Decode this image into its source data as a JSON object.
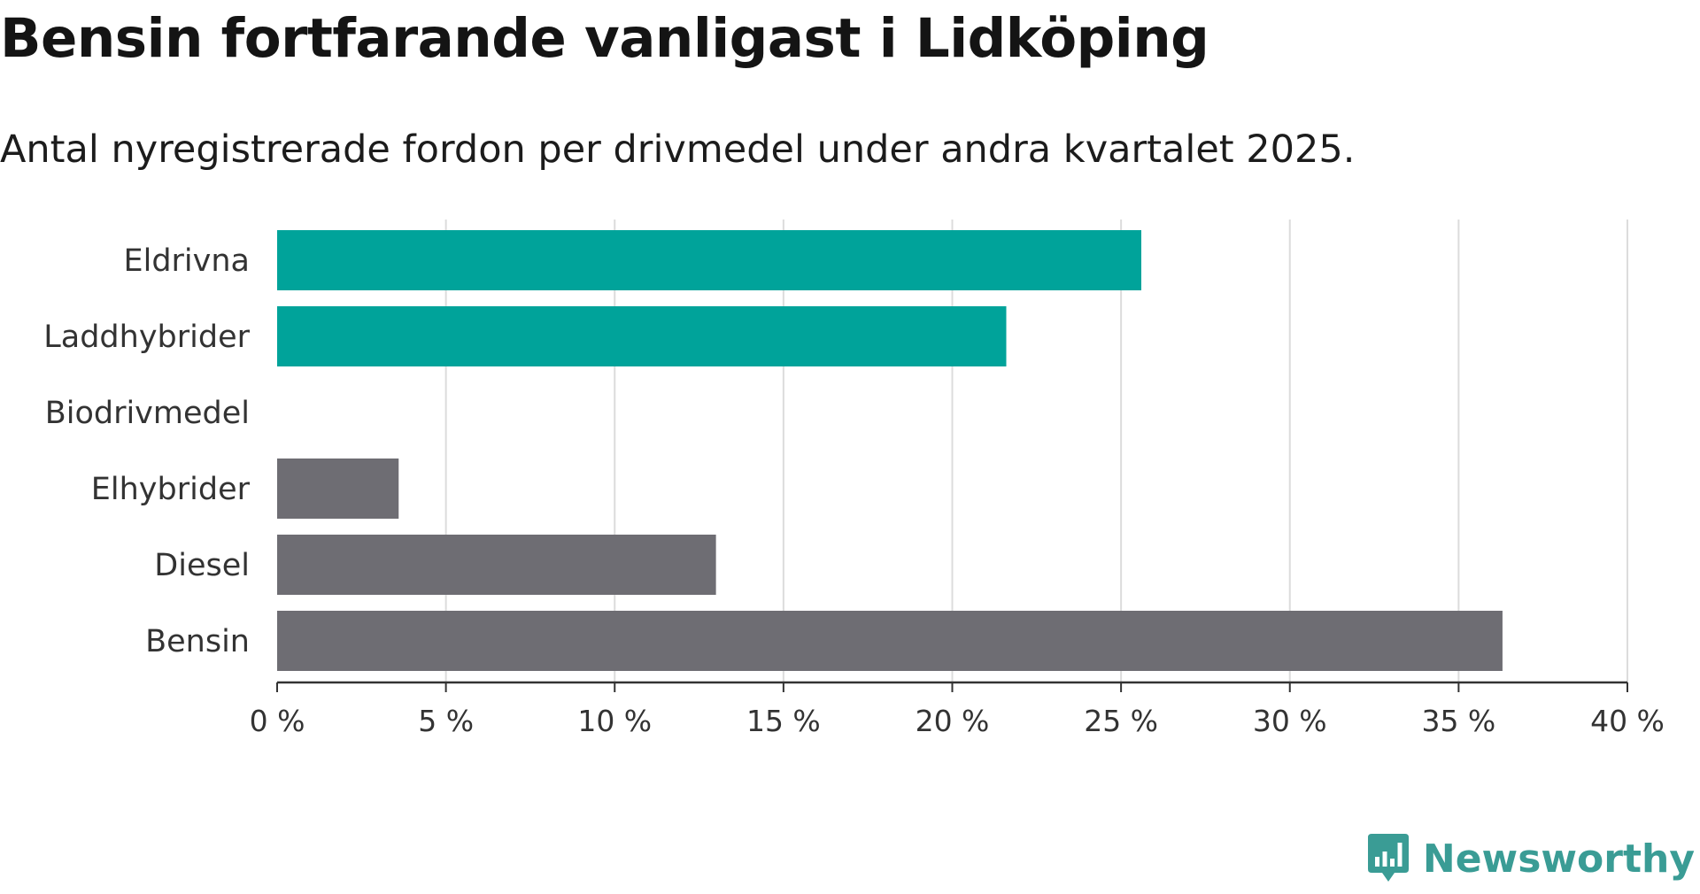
{
  "header": {
    "title": "Bensin fortfarande vanligast i Lidköping",
    "subtitle": "Antal nyregistrerade fordon per drivmedel under andra kvartalet 2025."
  },
  "chart_data": {
    "type": "bar",
    "orientation": "horizontal",
    "categories": [
      "Eldrivna",
      "Laddhybrider",
      "Biodrivmedel",
      "Elhybrider",
      "Diesel",
      "Bensin"
    ],
    "values": [
      25.6,
      21.6,
      0,
      3.6,
      13.0,
      36.3
    ],
    "colors": [
      "#00a39a",
      "#00a39a",
      "#00a39a",
      "#6e6d73",
      "#6e6d73",
      "#6e6d73"
    ],
    "xlim": [
      0,
      40
    ],
    "xticks": [
      0,
      5,
      10,
      15,
      20,
      25,
      30,
      35,
      40
    ],
    "xtick_labels": [
      "0 %",
      "5 %",
      "10 %",
      "15 %",
      "20 %",
      "25 %",
      "30 %",
      "35 %",
      "40 %"
    ],
    "grid": "vertical",
    "title": "Bensin fortfarande vanligast i Lidköping",
    "subtitle": "Antal nyregistrerade fordon per drivmedel under andra kvartalet 2025."
  },
  "branding": {
    "name": "Newsworthy",
    "logo_icon": "bar-chart-speech-bubble-icon",
    "color": "#3a9c95",
    "icon_bar_color": "#ffffff"
  }
}
